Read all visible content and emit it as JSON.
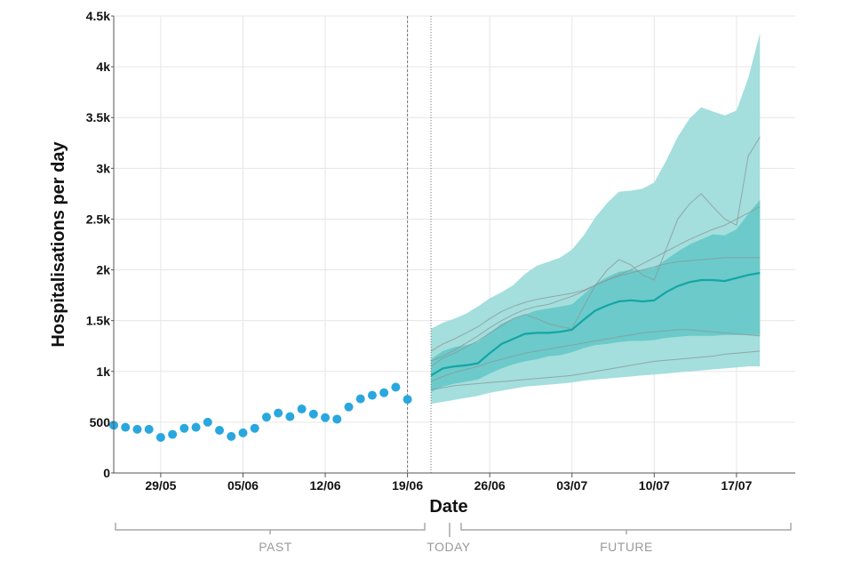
{
  "colors": {
    "observed": "#2aa7de",
    "median": "#14a5a5",
    "band_outer": "#a4dedd",
    "band_inner": "#6ccaca",
    "scenario_lines": "#8a9a9a",
    "grid": "#e6e6e6",
    "bracket": "#a8a8a8"
  },
  "chart_data": {
    "type": "line",
    "xlabel": "Date",
    "ylabel": "Hospitalisations per day",
    "ylim": [
      0,
      4500
    ],
    "y_ticks": [
      0,
      500,
      1000,
      1500,
      2000,
      2500,
      3000,
      3500,
      4000,
      4500
    ],
    "y_tick_labels": [
      "0",
      "500",
      "1k",
      "1.5k",
      "2k",
      "2.5k",
      "3k",
      "3.5k",
      "4k",
      "4.5k"
    ],
    "x_ticks": [
      {
        "date": "2021-05-29",
        "label": "29/05"
      },
      {
        "date": "2021-06-05",
        "label": "05/06"
      },
      {
        "date": "2021-06-12",
        "label": "12/06"
      },
      {
        "date": "2021-06-19",
        "label": "19/06"
      },
      {
        "date": "2021-06-26",
        "label": "26/06"
      },
      {
        "date": "2021-07-03",
        "label": "03/07"
      },
      {
        "date": "2021-07-10",
        "label": "10/07"
      },
      {
        "date": "2021-07-17",
        "label": "17/07"
      }
    ],
    "x_range": [
      "2021-05-25",
      "2021-07-22"
    ],
    "grid": true,
    "vertical_markers": [
      "2021-06-19",
      "2021-06-21"
    ],
    "observed": {
      "dates": [
        "2021-05-25",
        "2021-05-26",
        "2021-05-27",
        "2021-05-28",
        "2021-05-29",
        "2021-05-30",
        "2021-05-31",
        "2021-06-01",
        "2021-06-02",
        "2021-06-03",
        "2021-06-04",
        "2021-06-05",
        "2021-06-06",
        "2021-06-07",
        "2021-06-08",
        "2021-06-09",
        "2021-06-10",
        "2021-06-11",
        "2021-06-12",
        "2021-06-13",
        "2021-06-14",
        "2021-06-15",
        "2021-06-16",
        "2021-06-17",
        "2021-06-18",
        "2021-06-19"
      ],
      "values": [
        470,
        450,
        430,
        430,
        350,
        380,
        440,
        450,
        500,
        420,
        360,
        395,
        440,
        550,
        590,
        555,
        630,
        580,
        545,
        530,
        650,
        730,
        765,
        790,
        845,
        725
      ]
    },
    "forecast": {
      "dates": [
        "2021-06-21",
        "2021-06-22",
        "2021-06-23",
        "2021-06-24",
        "2021-06-25",
        "2021-06-26",
        "2021-06-27",
        "2021-06-28",
        "2021-06-29",
        "2021-06-30",
        "2021-07-01",
        "2021-07-02",
        "2021-07-03",
        "2021-07-04",
        "2021-07-05",
        "2021-07-06",
        "2021-07-07",
        "2021-07-08",
        "2021-07-09",
        "2021-07-10",
        "2021-07-11",
        "2021-07-12",
        "2021-07-13",
        "2021-07-14",
        "2021-07-15",
        "2021-07-16",
        "2021-07-17",
        "2021-07-18",
        "2021-07-19"
      ],
      "median": [
        960,
        1030,
        1050,
        1060,
        1080,
        1180,
        1270,
        1320,
        1370,
        1380,
        1380,
        1390,
        1410,
        1510,
        1600,
        1650,
        1690,
        1700,
        1690,
        1700,
        1780,
        1840,
        1880,
        1900,
        1900,
        1890,
        1920,
        1950,
        1970
      ],
      "inner_band_low": [
        800,
        850,
        880,
        900,
        920,
        980,
        1030,
        1070,
        1100,
        1120,
        1150,
        1160,
        1190,
        1230,
        1260,
        1270,
        1290,
        1300,
        1300,
        1310,
        1330,
        1340,
        1350,
        1350,
        1350,
        1360,
        1360,
        1360,
        1360
      ],
      "inner_band_high": [
        1120,
        1200,
        1240,
        1260,
        1290,
        1380,
        1470,
        1520,
        1560,
        1600,
        1620,
        1640,
        1660,
        1760,
        1860,
        1930,
        1980,
        2000,
        2000,
        2020,
        2100,
        2180,
        2250,
        2300,
        2350,
        2340,
        2400,
        2550,
        2690
      ],
      "outer_band_low": [
        680,
        700,
        720,
        740,
        760,
        790,
        810,
        830,
        850,
        860,
        870,
        880,
        890,
        910,
        920,
        930,
        940,
        950,
        960,
        970,
        980,
        990,
        1000,
        1010,
        1020,
        1030,
        1040,
        1050,
        1050
      ],
      "outer_band_high": [
        1420,
        1480,
        1520,
        1570,
        1640,
        1720,
        1780,
        1850,
        1960,
        2040,
        2080,
        2120,
        2200,
        2340,
        2520,
        2660,
        2770,
        2780,
        2800,
        2860,
        3070,
        3310,
        3490,
        3600,
        3560,
        3520,
        3570,
        3890,
        4330
      ]
    },
    "scenario_lines": [
      {
        "values": [
          1200,
          1270,
          1320,
          1380,
          1440,
          1520,
          1590,
          1640,
          1680,
          1710,
          1730,
          1750,
          1770,
          1800,
          1850,
          1900,
          1950,
          2000,
          2060,
          2120,
          2180,
          2240,
          2300,
          2350,
          2400,
          2440,
          2500,
          2560,
          2620
        ]
      },
      {
        "values": [
          1100,
          1150,
          1210,
          1280,
          1350,
          1430,
          1500,
          1560,
          1610,
          1640,
          1660,
          1700,
          1740,
          1790,
          1850,
          1900,
          1940,
          1970,
          2000,
          2030,
          2060,
          2080,
          2090,
          2100,
          2110,
          2120,
          2120,
          2120,
          2120
        ]
      },
      {
        "values": [
          1050,
          1130,
          1180,
          1240,
          1300,
          1380,
          1450,
          1520,
          1560,
          1520,
          1470,
          1440,
          1420,
          1640,
          1850,
          2000,
          2100,
          2050,
          1950,
          1900,
          2200,
          2500,
          2650,
          2750,
          2620,
          2500,
          2440,
          3120,
          3310
        ]
      },
      {
        "values": [
          900,
          950,
          990,
          1020,
          1050,
          1090,
          1120,
          1150,
          1180,
          1200,
          1220,
          1240,
          1260,
          1280,
          1300,
          1320,
          1340,
          1360,
          1380,
          1390,
          1400,
          1410,
          1410,
          1400,
          1390,
          1380,
          1370,
          1360,
          1350
        ]
      },
      {
        "values": [
          820,
          840,
          860,
          870,
          880,
          890,
          900,
          910,
          920,
          930,
          940,
          950,
          960,
          980,
          1000,
          1020,
          1040,
          1060,
          1080,
          1100,
          1110,
          1120,
          1130,
          1140,
          1150,
          1170,
          1180,
          1190,
          1200
        ]
      }
    ]
  },
  "brackets": {
    "past": "PAST",
    "today": "TODAY",
    "future": "FUTURE"
  }
}
